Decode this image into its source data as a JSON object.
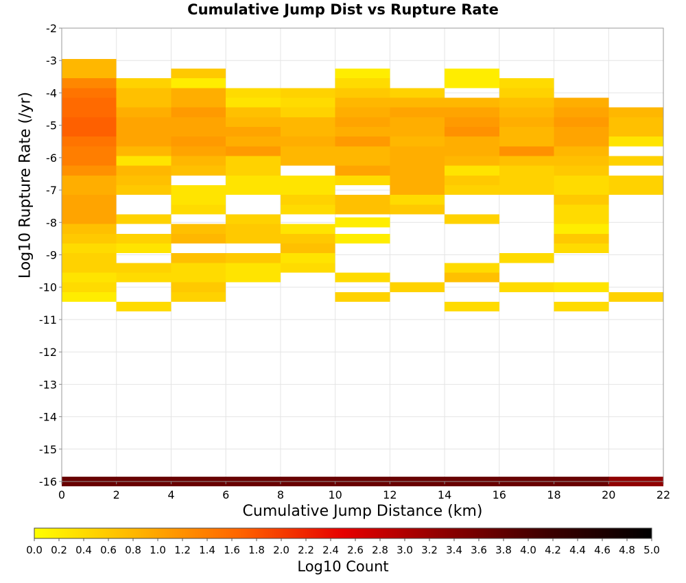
{
  "chart_data": {
    "type": "heatmap",
    "title": "Cumulative Jump Dist vs Rupture Rate",
    "xlabel": "Cumulative Jump Distance (km)",
    "ylabel": "Log10 Rupture Rate (/yr)",
    "xlim": [
      0,
      22
    ],
    "ylim": [
      -16,
      -2
    ],
    "xticks": [
      "0",
      "2",
      "4",
      "6",
      "8",
      "10",
      "12",
      "14",
      "16",
      "18",
      "20",
      "22"
    ],
    "yticks": [
      "-2",
      "-3",
      "-4",
      "-5",
      "-6",
      "-7",
      "-8",
      "-9",
      "-10",
      "-11",
      "-12",
      "-13",
      "-14",
      "-15",
      "-16"
    ],
    "x_bin_width": 2,
    "y_bin_height": 0.3,
    "grid": true,
    "colorbar": {
      "label": "Log10 Count",
      "min": 0.0,
      "max": 5.0,
      "ticks": [
        "0.0",
        "0.2",
        "0.4",
        "0.6",
        "0.8",
        "1.0",
        "1.2",
        "1.4",
        "1.6",
        "1.8",
        "2.0",
        "2.2",
        "2.4",
        "2.6",
        "2.8",
        "3.0",
        "3.2",
        "3.4",
        "3.6",
        "3.8",
        "4.0",
        "4.2",
        "4.4",
        "4.6",
        "4.8",
        "5.0"
      ],
      "colors": [
        "#ffff00",
        "#ffb400",
        "#ff6400",
        "#e60000",
        "#8c0000",
        "#3c0000",
        "#000000"
      ]
    },
    "columns": [
      {
        "x": 1,
        "cells": [
          [
            -3.1,
            0.8
          ],
          [
            -3.4,
            0.8
          ],
          [
            -3.7,
            1.3
          ],
          [
            -4.0,
            1.5
          ],
          [
            -4.3,
            1.6
          ],
          [
            -4.6,
            1.6
          ],
          [
            -4.9,
            1.7
          ],
          [
            -5.2,
            1.7
          ],
          [
            -5.5,
            1.5
          ],
          [
            -5.8,
            1.4
          ],
          [
            -6.1,
            1.4
          ],
          [
            -6.4,
            1.2
          ],
          [
            -6.7,
            0.9
          ],
          [
            -7.0,
            0.9
          ],
          [
            -7.3,
            1.0
          ],
          [
            -7.6,
            1.0
          ],
          [
            -7.9,
            1.0
          ],
          [
            -8.2,
            0.7
          ],
          [
            -8.5,
            0.6
          ],
          [
            -8.8,
            0.4
          ],
          [
            -9.1,
            0.5
          ],
          [
            -9.4,
            0.5
          ],
          [
            -9.7,
            0.3
          ],
          [
            -10.0,
            0.4
          ],
          [
            -10.3,
            0.2
          ],
          [
            -16.0,
            3.7
          ]
        ]
      },
      {
        "x": 3,
        "cells": [
          [
            -3.7,
            0.5
          ],
          [
            -4.0,
            0.7
          ],
          [
            -4.3,
            0.7
          ],
          [
            -4.6,
            0.9
          ],
          [
            -4.9,
            1.0
          ],
          [
            -5.2,
            1.0
          ],
          [
            -5.5,
            1.0
          ],
          [
            -5.8,
            0.8
          ],
          [
            -6.1,
            0.3
          ],
          [
            -6.4,
            0.8
          ],
          [
            -6.7,
            0.7
          ],
          [
            -7.0,
            0.6
          ],
          [
            -7.9,
            0.5
          ],
          [
            -8.5,
            0.5
          ],
          [
            -8.8,
            0.3
          ],
          [
            -9.4,
            0.5
          ],
          [
            -9.7,
            0.4
          ],
          [
            -10.6,
            0.4
          ],
          [
            -16.0,
            3.7
          ]
        ]
      },
      {
        "x": 5,
        "cells": [
          [
            -3.4,
            0.6
          ],
          [
            -3.7,
            0.2
          ],
          [
            -4.0,
            0.9
          ],
          [
            -4.3,
            0.9
          ],
          [
            -4.6,
            1.1
          ],
          [
            -4.9,
            1.0
          ],
          [
            -5.2,
            1.0
          ],
          [
            -5.5,
            1.1
          ],
          [
            -5.8,
            1.0
          ],
          [
            -6.1,
            0.8
          ],
          [
            -6.4,
            0.7
          ],
          [
            -7.0,
            0.3
          ],
          [
            -7.3,
            0.3
          ],
          [
            -7.6,
            0.4
          ],
          [
            -8.2,
            0.7
          ],
          [
            -8.5,
            0.8
          ],
          [
            -9.1,
            0.7
          ],
          [
            -9.4,
            0.4
          ],
          [
            -9.7,
            0.4
          ],
          [
            -10.0,
            0.6
          ],
          [
            -10.3,
            0.5
          ],
          [
            -16.0,
            3.7
          ]
        ]
      },
      {
        "x": 7,
        "cells": [
          [
            -4.0,
            0.4
          ],
          [
            -4.3,
            0.3
          ],
          [
            -4.6,
            0.7
          ],
          [
            -4.9,
            0.8
          ],
          [
            -5.2,
            1.0
          ],
          [
            -5.5,
            0.9
          ],
          [
            -5.8,
            1.1
          ],
          [
            -6.1,
            0.5
          ],
          [
            -6.4,
            0.5
          ],
          [
            -6.7,
            0.3
          ],
          [
            -7.0,
            0.3
          ],
          [
            -7.9,
            0.5
          ],
          [
            -8.2,
            0.6
          ],
          [
            -8.5,
            0.6
          ],
          [
            -9.1,
            0.6
          ],
          [
            -9.4,
            0.3
          ],
          [
            -9.7,
            0.3
          ],
          [
            -16.0,
            3.7
          ]
        ]
      },
      {
        "x": 9,
        "cells": [
          [
            -4.0,
            0.5
          ],
          [
            -4.3,
            0.4
          ],
          [
            -4.6,
            0.5
          ],
          [
            -4.9,
            0.8
          ],
          [
            -5.2,
            0.8
          ],
          [
            -5.5,
            0.9
          ],
          [
            -5.8,
            0.8
          ],
          [
            -6.1,
            0.8
          ],
          [
            -6.7,
            0.3
          ],
          [
            -7.0,
            0.3
          ],
          [
            -7.3,
            0.5
          ],
          [
            -7.6,
            0.4
          ],
          [
            -8.2,
            0.3
          ],
          [
            -8.5,
            0.6
          ],
          [
            -8.8,
            0.7
          ],
          [
            -9.1,
            0.3
          ],
          [
            -9.4,
            0.4
          ],
          [
            -16.0,
            3.7
          ]
        ]
      },
      {
        "x": 11,
        "cells": [
          [
            -3.4,
            0.2
          ],
          [
            -3.7,
            0.4
          ],
          [
            -4.0,
            0.6
          ],
          [
            -4.3,
            0.8
          ],
          [
            -4.6,
            0.9
          ],
          [
            -4.9,
            1.0
          ],
          [
            -5.2,
            0.9
          ],
          [
            -5.5,
            1.1
          ],
          [
            -5.8,
            0.8
          ],
          [
            -6.1,
            0.8
          ],
          [
            -6.4,
            1.0
          ],
          [
            -6.7,
            0.4
          ],
          [
            -7.3,
            0.7
          ],
          [
            -7.6,
            0.7
          ],
          [
            -8.0,
            0.2
          ],
          [
            -8.5,
            0.2
          ],
          [
            -9.7,
            0.4
          ],
          [
            -10.3,
            0.5
          ],
          [
            -16.0,
            3.7
          ]
        ]
      },
      {
        "x": 13,
        "cells": [
          [
            -4.0,
            0.5
          ],
          [
            -4.3,
            0.8
          ],
          [
            -4.6,
            1.0
          ],
          [
            -4.9,
            0.9
          ],
          [
            -5.2,
            0.9
          ],
          [
            -5.5,
            0.8
          ],
          [
            -5.8,
            0.9
          ],
          [
            -6.1,
            0.9
          ],
          [
            -6.4,
            0.9
          ],
          [
            -6.7,
            0.9
          ],
          [
            -7.0,
            0.9
          ],
          [
            -7.3,
            0.4
          ],
          [
            -7.6,
            0.6
          ],
          [
            -10.0,
            0.5
          ],
          [
            -16.0,
            3.7
          ]
        ]
      },
      {
        "x": 15,
        "cells": [
          [
            -3.4,
            0.2
          ],
          [
            -3.7,
            0.2
          ],
          [
            -4.3,
            0.8
          ],
          [
            -4.6,
            1.0
          ],
          [
            -4.9,
            1.1
          ],
          [
            -5.2,
            1.2
          ],
          [
            -5.5,
            0.9
          ],
          [
            -5.8,
            0.9
          ],
          [
            -6.1,
            0.8
          ],
          [
            -6.4,
            0.3
          ],
          [
            -6.7,
            0.6
          ],
          [
            -7.0,
            0.5
          ],
          [
            -7.9,
            0.5
          ],
          [
            -9.4,
            0.4
          ],
          [
            -9.7,
            0.7
          ],
          [
            -10.6,
            0.4
          ],
          [
            -16.0,
            3.7
          ]
        ]
      },
      {
        "x": 17,
        "cells": [
          [
            -3.7,
            0.4
          ],
          [
            -4.0,
            0.5
          ],
          [
            -4.3,
            0.7
          ],
          [
            -4.6,
            0.8
          ],
          [
            -4.9,
            0.9
          ],
          [
            -5.2,
            0.8
          ],
          [
            -5.5,
            0.8
          ],
          [
            -5.8,
            1.2
          ],
          [
            -6.1,
            0.7
          ],
          [
            -6.4,
            0.5
          ],
          [
            -6.7,
            0.5
          ],
          [
            -7.0,
            0.5
          ],
          [
            -9.1,
            0.4
          ],
          [
            -10.0,
            0.4
          ],
          [
            -16.0,
            3.7
          ]
        ]
      },
      {
        "x": 19,
        "cells": [
          [
            -4.3,
            0.9
          ],
          [
            -4.6,
            1.0
          ],
          [
            -4.9,
            1.1
          ],
          [
            -5.2,
            1.0
          ],
          [
            -5.5,
            1.0
          ],
          [
            -5.8,
            0.8
          ],
          [
            -6.1,
            0.7
          ],
          [
            -6.4,
            0.6
          ],
          [
            -6.7,
            0.4
          ],
          [
            -7.0,
            0.4
          ],
          [
            -7.3,
            0.6
          ],
          [
            -7.6,
            0.4
          ],
          [
            -7.9,
            0.4
          ],
          [
            -8.2,
            0.2
          ],
          [
            -8.5,
            0.6
          ],
          [
            -8.8,
            0.4
          ],
          [
            -10.0,
            0.3
          ],
          [
            -10.6,
            0.4
          ],
          [
            -16.0,
            3.7
          ]
        ]
      },
      {
        "x": 21,
        "cells": [
          [
            -4.6,
            0.8
          ],
          [
            -4.9,
            0.7
          ],
          [
            -5.2,
            0.7
          ],
          [
            -5.5,
            0.3
          ],
          [
            -6.1,
            0.5
          ],
          [
            -6.7,
            0.5
          ],
          [
            -7.0,
            0.5
          ],
          [
            -10.3,
            0.5
          ],
          [
            -16.0,
            3.3
          ]
        ]
      }
    ]
  }
}
